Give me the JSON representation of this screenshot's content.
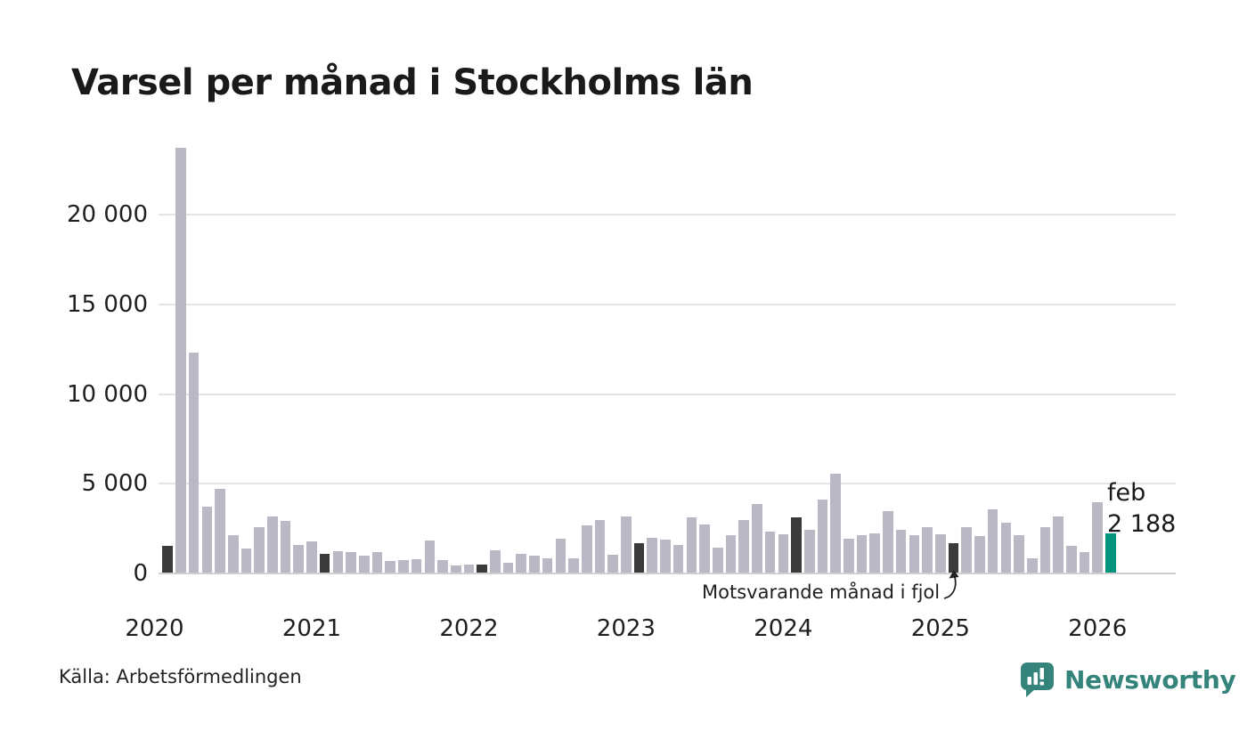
{
  "title": "Varsel per månad i Stockholms län",
  "source": "Källa: Arbetsförmedlingen",
  "annotation": {
    "text": "Motsvarande månad i fjol",
    "points_to": "2025-feb"
  },
  "current_label": {
    "line1": "feb",
    "line2": "2 188"
  },
  "branding": {
    "logo_text": "Newsworthy",
    "logo_icon": "newsworthy-speech-bubble-bar-chart-icon",
    "logo_color": "#35847c"
  },
  "colors": {
    "bar_default": "#b9b8c4",
    "bar_highlight_dark": "#3b3b3b",
    "bar_current": "#00947e",
    "gridline": "#e4e4e4",
    "axis_line": "#cfcfcf",
    "text": "#1a1a1a"
  },
  "chart_data": {
    "type": "bar",
    "title": "Varsel per månad i Stockholms län",
    "xlabel": "",
    "ylabel": "",
    "grid": "horizontal",
    "legend": "none",
    "ylim": [
      0,
      23700
    ],
    "y_ticks": [
      0,
      5000,
      10000,
      15000,
      20000
    ],
    "y_tick_labels": [
      "0",
      "5 000",
      "10 000",
      "15 000",
      "20 000"
    ],
    "x_year_labels": [
      "2020",
      "2021",
      "2022",
      "2023",
      "2024",
      "2025",
      "2026"
    ],
    "year_label_indices": [
      -1,
      11,
      23,
      35,
      47,
      59,
      71
    ],
    "x": [
      "2020-feb",
      "2020-mar",
      "2020-apr",
      "2020-maj",
      "2020-jun",
      "2020-jul",
      "2020-aug",
      "2020-sep",
      "2020-okt",
      "2020-nov",
      "2020-dec",
      "2021-jan",
      "2021-feb",
      "2021-mar",
      "2021-apr",
      "2021-maj",
      "2021-jun",
      "2021-jul",
      "2021-aug",
      "2021-sep",
      "2021-okt",
      "2021-nov",
      "2021-dec",
      "2022-jan",
      "2022-feb",
      "2022-mar",
      "2022-apr",
      "2022-maj",
      "2022-jun",
      "2022-jul",
      "2022-aug",
      "2022-sep",
      "2022-okt",
      "2022-nov",
      "2022-dec",
      "2023-jan",
      "2023-feb",
      "2023-mar",
      "2023-apr",
      "2023-maj",
      "2023-jun",
      "2023-jul",
      "2023-aug",
      "2023-sep",
      "2023-okt",
      "2023-nov",
      "2023-dec",
      "2024-jan",
      "2024-feb",
      "2024-mar",
      "2024-apr",
      "2024-maj",
      "2024-jun",
      "2024-jul",
      "2024-aug",
      "2024-sep",
      "2024-okt",
      "2024-nov",
      "2024-dec",
      "2025-jan",
      "2025-feb",
      "2025-mar",
      "2025-apr",
      "2025-maj",
      "2025-jun",
      "2025-jul",
      "2025-aug",
      "2025-sep",
      "2025-okt",
      "2025-nov",
      "2025-dec",
      "2026-jan",
      "2026-feb"
    ],
    "values": [
      1500,
      23700,
      12250,
      3650,
      4690,
      2100,
      1340,
      2540,
      3150,
      2870,
      1540,
      1740,
      1040,
      1210,
      1130,
      960,
      1160,
      630,
      680,
      750,
      1790,
      710,
      400,
      430,
      470,
      1260,
      550,
      1040,
      930,
      800,
      1870,
      800,
      2650,
      2920,
      1000,
      3110,
      1660,
      1950,
      1850,
      1550,
      3080,
      2680,
      1390,
      2090,
      2930,
      3820,
      2300,
      2150,
      3060,
      2380,
      4090,
      5530,
      1890,
      2100,
      2170,
      3430,
      2400,
      2100,
      2530,
      2150,
      1660,
      2530,
      2040,
      3530,
      2780,
      2090,
      800,
      2550,
      3150,
      1490,
      1130,
      3940,
      2188
    ],
    "dark_indices": [
      0,
      12,
      24,
      36,
      48,
      60
    ],
    "current_index": 72,
    "current_value_label": "feb 2 188"
  }
}
